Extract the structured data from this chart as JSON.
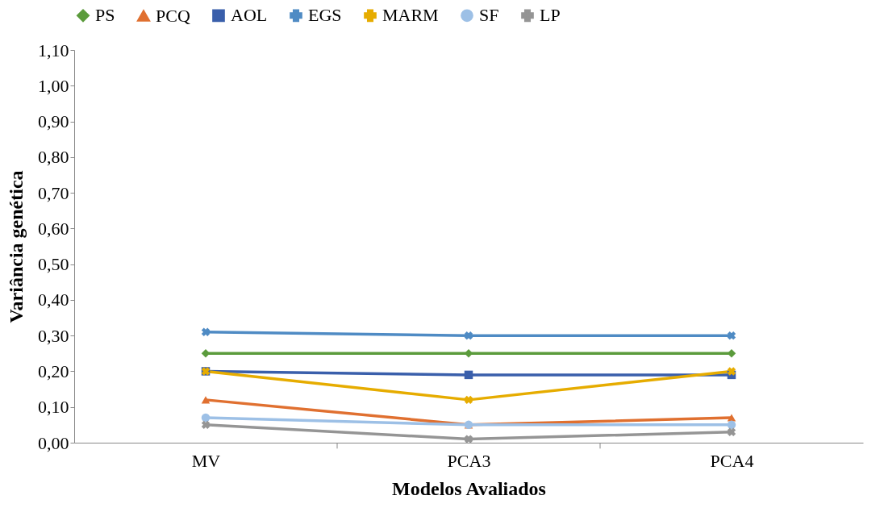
{
  "chart_data": {
    "type": "line",
    "xlabel": "Modelos Avaliados",
    "ylabel": "Variância genética",
    "categories": [
      "MV",
      "PCA3",
      "PCA4"
    ],
    "series": [
      {
        "name": "PS",
        "color": "#5b9b3c",
        "marker": "diamond",
        "values": [
          0.25,
          0.25,
          0.25
        ]
      },
      {
        "name": "PCQ",
        "color": "#e07030",
        "marker": "triangle",
        "values": [
          0.12,
          0.05,
          0.07
        ]
      },
      {
        "name": "AOL",
        "color": "#3a5fab",
        "marker": "square",
        "values": [
          0.2,
          0.19,
          0.19
        ]
      },
      {
        "name": "EGS",
        "color": "#4f8bc4",
        "marker": "cross",
        "values": [
          0.31,
          0.3,
          0.3
        ]
      },
      {
        "name": "MARM",
        "color": "#e6ac00",
        "marker": "cross",
        "values": [
          0.2,
          0.12,
          0.2
        ]
      },
      {
        "name": "SF",
        "color": "#9dc0e6",
        "marker": "circle",
        "values": [
          0.07,
          0.05,
          0.05
        ]
      },
      {
        "name": "LP",
        "color": "#959595",
        "marker": "cross",
        "values": [
          0.05,
          0.01,
          0.03
        ]
      }
    ],
    "ylim": [
      0,
      1.1
    ],
    "yticks": [
      {
        "value": 0,
        "label": "0,00"
      },
      {
        "value": 0.1,
        "label": "0,10"
      },
      {
        "value": 0.2,
        "label": "0,20"
      },
      {
        "value": 0.3,
        "label": "0,30"
      },
      {
        "value": 0.4,
        "label": "0,40"
      },
      {
        "value": 0.5,
        "label": "0,50"
      },
      {
        "value": 0.6,
        "label": "0,60"
      },
      {
        "value": 0.7,
        "label": "0,70"
      },
      {
        "value": 0.8,
        "label": "0,80"
      },
      {
        "value": 0.9,
        "label": "0,90"
      },
      {
        "value": 1.0,
        "label": "1,00"
      },
      {
        "value": 1.1,
        "label": "1,10"
      }
    ],
    "grid": false,
    "legend": "top"
  }
}
